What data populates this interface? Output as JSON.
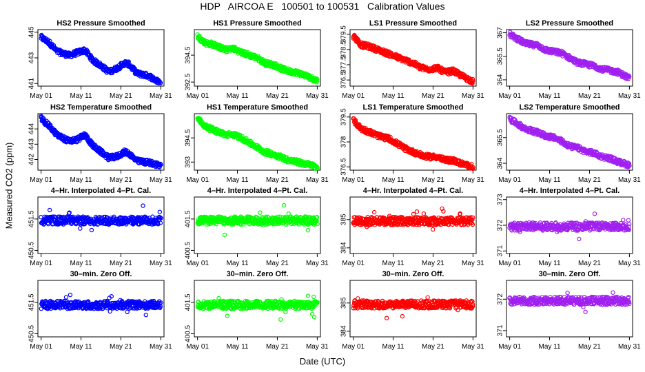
{
  "title": "HDP   AIRCOA E   100501 to 100531   Calibration Values",
  "ylabel": "Measured CO2 (ppm)",
  "xlabel": "Date (UTC)",
  "colors": {
    "HS2": "#0000ff",
    "HS1": "#00ff00",
    "LS1": "#ff0000",
    "LS2": "#a020f0"
  },
  "chart_data": [
    {
      "type": "scatter",
      "title": "HS2 Pressure Smoothed",
      "xticks": [
        "May 01",
        "May 11",
        "May 21",
        "May 31"
      ],
      "xlim": [
        1,
        31
      ],
      "ylim": [
        440.8,
        445.2
      ],
      "yticks": [
        441,
        443,
        445
      ],
      "color": "#0000ff",
      "trend": [
        [
          1,
          444.6
        ],
        [
          3,
          444.2
        ],
        [
          5,
          443.5
        ],
        [
          8,
          443.2
        ],
        [
          10,
          443.4
        ],
        [
          12,
          443.6
        ],
        [
          14,
          442.8
        ],
        [
          16,
          442.4
        ],
        [
          18,
          441.9
        ],
        [
          20,
          442.2
        ],
        [
          22,
          442.6
        ],
        [
          23,
          442.5
        ],
        [
          25,
          441.8
        ],
        [
          28,
          441.6
        ],
        [
          31,
          441.0
        ]
      ]
    },
    {
      "type": "scatter",
      "title": "HS1 Pressure Smoothed",
      "xticks": [
        "May 01",
        "May 11",
        "May 21",
        "May 31"
      ],
      "xlim": [
        1,
        31
      ],
      "ylim": [
        392.2,
        396.4
      ],
      "yticks": [
        392.5,
        394.5
      ],
      "color": "#00ff00",
      "trend": [
        [
          1,
          395.9
        ],
        [
          3,
          395.4
        ],
        [
          5,
          395.3
        ],
        [
          8,
          394.9
        ],
        [
          10,
          395.0
        ],
        [
          12,
          394.7
        ],
        [
          14,
          394.5
        ],
        [
          16,
          394.3
        ],
        [
          18,
          393.9
        ],
        [
          20,
          393.8
        ],
        [
          22,
          393.5
        ],
        [
          24,
          393.3
        ],
        [
          26,
          393.2
        ],
        [
          28,
          393.0
        ],
        [
          31,
          392.6
        ]
      ]
    },
    {
      "type": "scatter",
      "title": "LS1 Pressure Smoothed",
      "xticks": [
        "May 01",
        "May 11",
        "May 21",
        "May 31"
      ],
      "xlim": [
        1,
        31
      ],
      "ylim": [
        376.1,
        379.8
      ],
      "yticks": [
        376.5,
        377.5,
        378.5,
        379.5
      ],
      "color": "#ff0000",
      "trend": [
        [
          1,
          379.4
        ],
        [
          3,
          378.8
        ],
        [
          5,
          378.7
        ],
        [
          8,
          378.4
        ],
        [
          10,
          378.2
        ],
        [
          12,
          378.0
        ],
        [
          14,
          377.8
        ],
        [
          16,
          377.6
        ],
        [
          18,
          377.3
        ],
        [
          20,
          377.2
        ],
        [
          22,
          377.3
        ],
        [
          24,
          377.0
        ],
        [
          26,
          377.1
        ],
        [
          28,
          376.8
        ],
        [
          31,
          376.4
        ]
      ]
    },
    {
      "type": "scatter",
      "title": "LS2 Pressure Smoothed",
      "xticks": [
        "May 01",
        "May 11",
        "May 21",
        "May 31"
      ],
      "xlim": [
        1,
        31
      ],
      "ylim": [
        363.6,
        367.2
      ],
      "yticks": [
        364.0,
        365.5,
        367.0
      ],
      "color": "#a020f0",
      "trend": [
        [
          1,
          366.9
        ],
        [
          3,
          366.6
        ],
        [
          5,
          366.3
        ],
        [
          8,
          366.2
        ],
        [
          10,
          365.9
        ],
        [
          12,
          365.8
        ],
        [
          14,
          365.7
        ],
        [
          16,
          365.4
        ],
        [
          18,
          365.1
        ],
        [
          20,
          365.0
        ],
        [
          22,
          364.9
        ],
        [
          24,
          364.7
        ],
        [
          26,
          364.6
        ],
        [
          28,
          364.5
        ],
        [
          31,
          364.1
        ]
      ]
    },
    {
      "type": "scatter",
      "title": "HS2 Temperature Smoothed",
      "xticks": [
        "May 01",
        "May 11",
        "May 21",
        "May 31"
      ],
      "xlim": [
        1,
        31
      ],
      "ylim": [
        441.3,
        445.0
      ],
      "yticks": [
        442,
        443,
        444
      ],
      "color": "#0000ff",
      "trend": [
        [
          1,
          444.7
        ],
        [
          3,
          444.2
        ],
        [
          5,
          443.6
        ],
        [
          8,
          443.2
        ],
        [
          10,
          443.3
        ],
        [
          12,
          443.6
        ],
        [
          14,
          442.9
        ],
        [
          16,
          442.5
        ],
        [
          18,
          442.1
        ],
        [
          20,
          442.2
        ],
        [
          22,
          442.5
        ],
        [
          23,
          442.4
        ],
        [
          25,
          441.9
        ],
        [
          28,
          441.8
        ],
        [
          31,
          441.6
        ]
      ]
    },
    {
      "type": "scatter",
      "title": "HS1 Temperature Smoothed",
      "xticks": [
        "May 01",
        "May 11",
        "May 21",
        "May 31"
      ],
      "xlim": [
        1,
        31
      ],
      "ylim": [
        392.5,
        396.0
      ],
      "yticks": [
        393.0,
        394.5
      ],
      "color": "#00ff00",
      "trend": [
        [
          1,
          395.7
        ],
        [
          3,
          395.2
        ],
        [
          5,
          395.0
        ],
        [
          8,
          394.7
        ],
        [
          10,
          394.7
        ],
        [
          12,
          394.5
        ],
        [
          14,
          394.2
        ],
        [
          16,
          393.9
        ],
        [
          18,
          393.6
        ],
        [
          20,
          393.5
        ],
        [
          22,
          393.3
        ],
        [
          24,
          393.1
        ],
        [
          26,
          393.0
        ],
        [
          28,
          392.9
        ],
        [
          31,
          392.7
        ]
      ]
    },
    {
      "type": "scatter",
      "title": "LS1 Temperature Smoothed",
      "xticks": [
        "May 01",
        "May 11",
        "May 21",
        "May 31"
      ],
      "xlim": [
        1,
        31
      ],
      "ylim": [
        376.3,
        379.7
      ],
      "yticks": [
        376.5,
        378.0,
        379.5
      ],
      "color": "#ff0000",
      "trend": [
        [
          1,
          379.3
        ],
        [
          3,
          378.8
        ],
        [
          5,
          378.6
        ],
        [
          8,
          378.3
        ],
        [
          10,
          378.2
        ],
        [
          12,
          377.9
        ],
        [
          14,
          377.6
        ],
        [
          16,
          377.4
        ],
        [
          18,
          377.2
        ],
        [
          20,
          377.1
        ],
        [
          22,
          377.1
        ],
        [
          24,
          376.9
        ],
        [
          26,
          376.9
        ],
        [
          28,
          376.7
        ],
        [
          31,
          376.5
        ]
      ]
    },
    {
      "type": "scatter",
      "title": "LS2 Temperature Smoothed",
      "xticks": [
        "May 01",
        "May 11",
        "May 21",
        "May 31"
      ],
      "xlim": [
        1,
        31
      ],
      "ylim": [
        363.6,
        366.9
      ],
      "yticks": [
        364.0,
        365.5
      ],
      "color": "#a020f0",
      "trend": [
        [
          1,
          366.6
        ],
        [
          3,
          366.3
        ],
        [
          5,
          366.0
        ],
        [
          8,
          365.8
        ],
        [
          10,
          365.6
        ],
        [
          12,
          365.5
        ],
        [
          14,
          365.3
        ],
        [
          16,
          365.0
        ],
        [
          18,
          364.9
        ],
        [
          20,
          364.7
        ],
        [
          22,
          364.6
        ],
        [
          24,
          364.4
        ],
        [
          26,
          364.3
        ],
        [
          28,
          364.1
        ],
        [
          31,
          363.9
        ]
      ]
    },
    {
      "type": "scatter",
      "title": "4–Hr. Interpolated 4–Pt. Cal.",
      "xticks": [
        "May 01",
        "May 11",
        "May 21",
        "May 31"
      ],
      "xlim": [
        1,
        31
      ],
      "ylim": [
        450.4,
        452.2
      ],
      "yticks": [
        450.5,
        451.5
      ],
      "color": "#0000ff",
      "trend": [
        [
          1,
          451.45
        ],
        [
          31,
          451.45
        ]
      ]
    },
    {
      "type": "scatter",
      "title": "4–Hr. Interpolated 4–Pt. Cal.",
      "xticks": [
        "May 01",
        "May 11",
        "May 21",
        "May 31"
      ],
      "xlim": [
        1,
        31
      ],
      "ylim": [
        400.4,
        402.2
      ],
      "yticks": [
        400.5,
        401.5
      ],
      "color": "#00ff00",
      "trend": [
        [
          1,
          401.45
        ],
        [
          31,
          401.45
        ]
      ]
    },
    {
      "type": "scatter",
      "title": "4–Hr. Interpolated 4–Pt. Cal.",
      "xticks": [
        "May 01",
        "May 11",
        "May 21",
        "May 31"
      ],
      "xlim": [
        1,
        31
      ],
      "ylim": [
        383.8,
        385.8
      ],
      "yticks": [
        384.0,
        385.0
      ],
      "color": "#ff0000",
      "trend": [
        [
          1,
          384.95
        ],
        [
          31,
          384.95
        ]
      ]
    },
    {
      "type": "scatter",
      "title": "4–Hr. Interpolated 4–Pt. Cal.",
      "xticks": [
        "May 01",
        "May 11",
        "May 21",
        "May 31"
      ],
      "xlim": [
        1,
        31
      ],
      "ylim": [
        370.9,
        373.1
      ],
      "yticks": [
        371.0,
        372.0,
        373.0
      ],
      "color": "#a020f0",
      "trend": [
        [
          1,
          371.95
        ],
        [
          31,
          371.95
        ]
      ]
    },
    {
      "type": "scatter",
      "title": "30–min. Zero Off.",
      "xticks": [
        "May 01",
        "May 11",
        "May 21",
        "May 31"
      ],
      "xlim": [
        1,
        31
      ],
      "ylim": [
        450.4,
        452.2
      ],
      "yticks": [
        450.5,
        451.5
      ],
      "color": "#0000ff",
      "trend": [
        [
          1,
          451.42
        ],
        [
          31,
          451.42
        ]
      ]
    },
    {
      "type": "scatter",
      "title": "30–min. Zero Off.",
      "xticks": [
        "May 01",
        "May 11",
        "May 21",
        "May 31"
      ],
      "xlim": [
        1,
        31
      ],
      "ylim": [
        400.4,
        402.2
      ],
      "yticks": [
        400.5,
        401.5
      ],
      "color": "#00ff00",
      "trend": [
        [
          1,
          401.42
        ],
        [
          31,
          401.42
        ]
      ]
    },
    {
      "type": "scatter",
      "title": "30–min. Zero Off.",
      "xticks": [
        "May 01",
        "May 11",
        "May 21",
        "May 31"
      ],
      "xlim": [
        1,
        31
      ],
      "ylim": [
        383.8,
        385.8
      ],
      "yticks": [
        384.0,
        385.0
      ],
      "color": "#ff0000",
      "trend": [
        [
          1,
          384.95
        ],
        [
          31,
          384.95
        ]
      ]
    },
    {
      "type": "scatter",
      "title": "30–min. Zero Off.",
      "xticks": [
        "May 01",
        "May 11",
        "May 21",
        "May 31"
      ],
      "xlim": [
        1,
        31
      ],
      "ylim": [
        370.8,
        372.6
      ],
      "yticks": [
        371.0,
        372.0
      ],
      "color": "#a020f0",
      "trend": [
        [
          1,
          371.95
        ],
        [
          31,
          371.95
        ]
      ]
    }
  ]
}
